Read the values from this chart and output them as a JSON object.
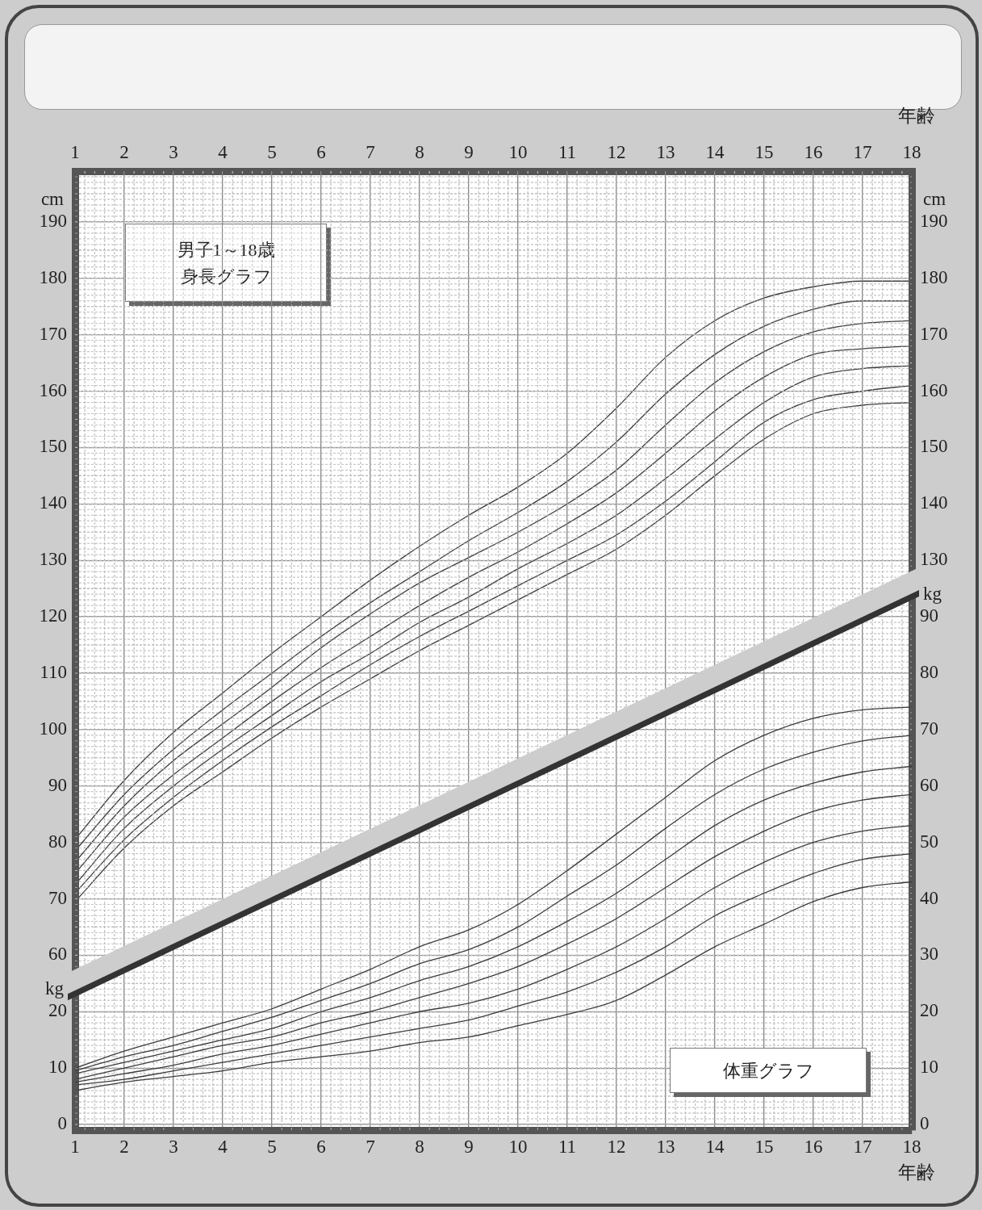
{
  "chart_data": [
    {
      "type": "line",
      "title": "男子1～18歳",
      "subtitle": "身長グラフ",
      "xlabel": "年齢",
      "ylabel": "cm",
      "y2label": "cm",
      "x": [
        1,
        2,
        3,
        4,
        5,
        6,
        7,
        8,
        9,
        10,
        11,
        12,
        13,
        14,
        15,
        16,
        17,
        18
      ],
      "xlim": [
        1,
        18
      ],
      "xticks": [
        1,
        2,
        3,
        4,
        5,
        6,
        7,
        8,
        9,
        10,
        11,
        12,
        13,
        14,
        15,
        16,
        17,
        18
      ],
      "ylim": [
        29,
        199
      ],
      "yticks": [
        60,
        70,
        80,
        90,
        100,
        110,
        120,
        130,
        140,
        150,
        160,
        170,
        180,
        190
      ],
      "y2lim": [
        29,
        199
      ],
      "y2ticks": [
        130,
        140,
        150,
        160,
        170,
        180,
        190
      ],
      "grid": true,
      "legend": false,
      "marker": "none",
      "line_style": "solid",
      "series": [
        {
          "color": "#3c3c3c",
          "values": [
            80.5,
            91,
            99.5,
            106.5,
            113.5,
            120,
            126.5,
            132.5,
            138,
            143,
            149,
            157,
            166,
            172.5,
            176.5,
            178.5,
            179.5,
            179.5
          ]
        },
        {
          "color": "#3c3c3c",
          "values": [
            78.5,
            88.5,
            96.5,
            103.5,
            110,
            116.5,
            122.5,
            128,
            133.5,
            138.5,
            144,
            151,
            159.5,
            166.5,
            171.5,
            174.5,
            176,
            176
          ]
        },
        {
          "color": "#3c3c3c",
          "values": [
            76.5,
            86.5,
            94.5,
            101,
            107.5,
            114.5,
            120.5,
            126,
            130.5,
            135,
            140,
            146,
            154,
            161.5,
            167,
            170.5,
            172,
            172.5
          ]
        },
        {
          "color": "#3c3c3c",
          "values": [
            74.5,
            84.5,
            92,
            98.5,
            105,
            111,
            116.5,
            122,
            127,
            131.5,
            136.5,
            142,
            149,
            156.5,
            162.5,
            166.5,
            167.5,
            168
          ]
        },
        {
          "color": "#3c3c3c",
          "values": [
            72.5,
            82.5,
            90,
            96.5,
            102.5,
            108.5,
            113.5,
            119,
            123.5,
            128.5,
            133,
            138,
            144.5,
            151.5,
            158,
            162.5,
            164,
            164.5
          ]
        },
        {
          "color": "#3c3c3c",
          "values": [
            71,
            80.5,
            88,
            94.5,
            100.5,
            106,
            111.5,
            116.5,
            121,
            125.5,
            130,
            134.5,
            140.5,
            147.5,
            154.5,
            158.5,
            160,
            161
          ]
        },
        {
          "color": "#3c3c3c",
          "values": [
            69.5,
            79,
            86.5,
            92.5,
            98.5,
            104,
            109,
            114,
            118.5,
            123,
            127.5,
            132,
            138,
            145,
            151.5,
            156,
            157.5,
            158
          ]
        }
      ]
    },
    {
      "type": "line",
      "annotations": [
        "体重グラフ"
      ],
      "xlabel": "年齢",
      "ylabel": "kg",
      "y2label": "kg",
      "x": [
        1,
        2,
        3,
        4,
        5,
        6,
        7,
        8,
        9,
        10,
        11,
        12,
        13,
        14,
        15,
        16,
        17,
        18
      ],
      "xlim": [
        1,
        18
      ],
      "xticks": [
        1,
        2,
        3,
        4,
        5,
        6,
        7,
        8,
        9,
        10,
        11,
        12,
        13,
        14,
        15,
        16,
        17,
        18
      ],
      "ylim": [
        -1,
        169
      ],
      "yticks": [
        0,
        10,
        20
      ],
      "y2lim": [
        -1,
        169
      ],
      "y2ticks": [
        0,
        10,
        20,
        30,
        40,
        50,
        60,
        70,
        80,
        90
      ],
      "grid": true,
      "legend": false,
      "marker": "none",
      "line_style": "solid",
      "series": [
        {
          "color": "#3c3c3c",
          "values": [
            10,
            13,
            15.5,
            18,
            20.5,
            24,
            27.5,
            31.5,
            34.5,
            39,
            45,
            51.5,
            58,
            64.5,
            69,
            72,
            73.5,
            74
          ]
        },
        {
          "color": "#3c3c3c",
          "values": [
            9.5,
            12,
            14,
            16.5,
            19,
            22,
            25,
            28.5,
            31,
            35,
            40.5,
            46,
            52.5,
            58.5,
            63,
            66,
            68,
            69
          ]
        },
        {
          "color": "#3c3c3c",
          "values": [
            9,
            11,
            13,
            15,
            17,
            20,
            22.5,
            25.5,
            28,
            31.5,
            36,
            41,
            47,
            53,
            57.5,
            60.5,
            62.5,
            63.5
          ]
        },
        {
          "color": "#3c3c3c",
          "values": [
            8,
            10,
            12,
            14,
            15.5,
            18,
            20,
            22.5,
            25,
            28,
            32,
            36.5,
            42,
            47.5,
            52,
            55.5,
            57.5,
            58.5
          ]
        },
        {
          "color": "#3c3c3c",
          "values": [
            7.5,
            9,
            10.5,
            12.5,
            14,
            16,
            18,
            20,
            21.5,
            24,
            27.5,
            31.5,
            36.5,
            42,
            46.5,
            50,
            52,
            53
          ]
        },
        {
          "color": "#3c3c3c",
          "values": [
            7,
            8,
            9.5,
            11,
            12.5,
            14,
            15.5,
            17,
            18.5,
            21,
            23.5,
            27,
            31.5,
            37,
            41,
            44.5,
            47,
            48
          ]
        },
        {
          "color": "#3c3c3c",
          "values": [
            6,
            7.5,
            8.5,
            9.5,
            11,
            12,
            13,
            14.5,
            15.5,
            17.5,
            19.5,
            22,
            26.5,
            31.5,
            35.5,
            39.5,
            42,
            43
          ]
        }
      ]
    }
  ]
}
